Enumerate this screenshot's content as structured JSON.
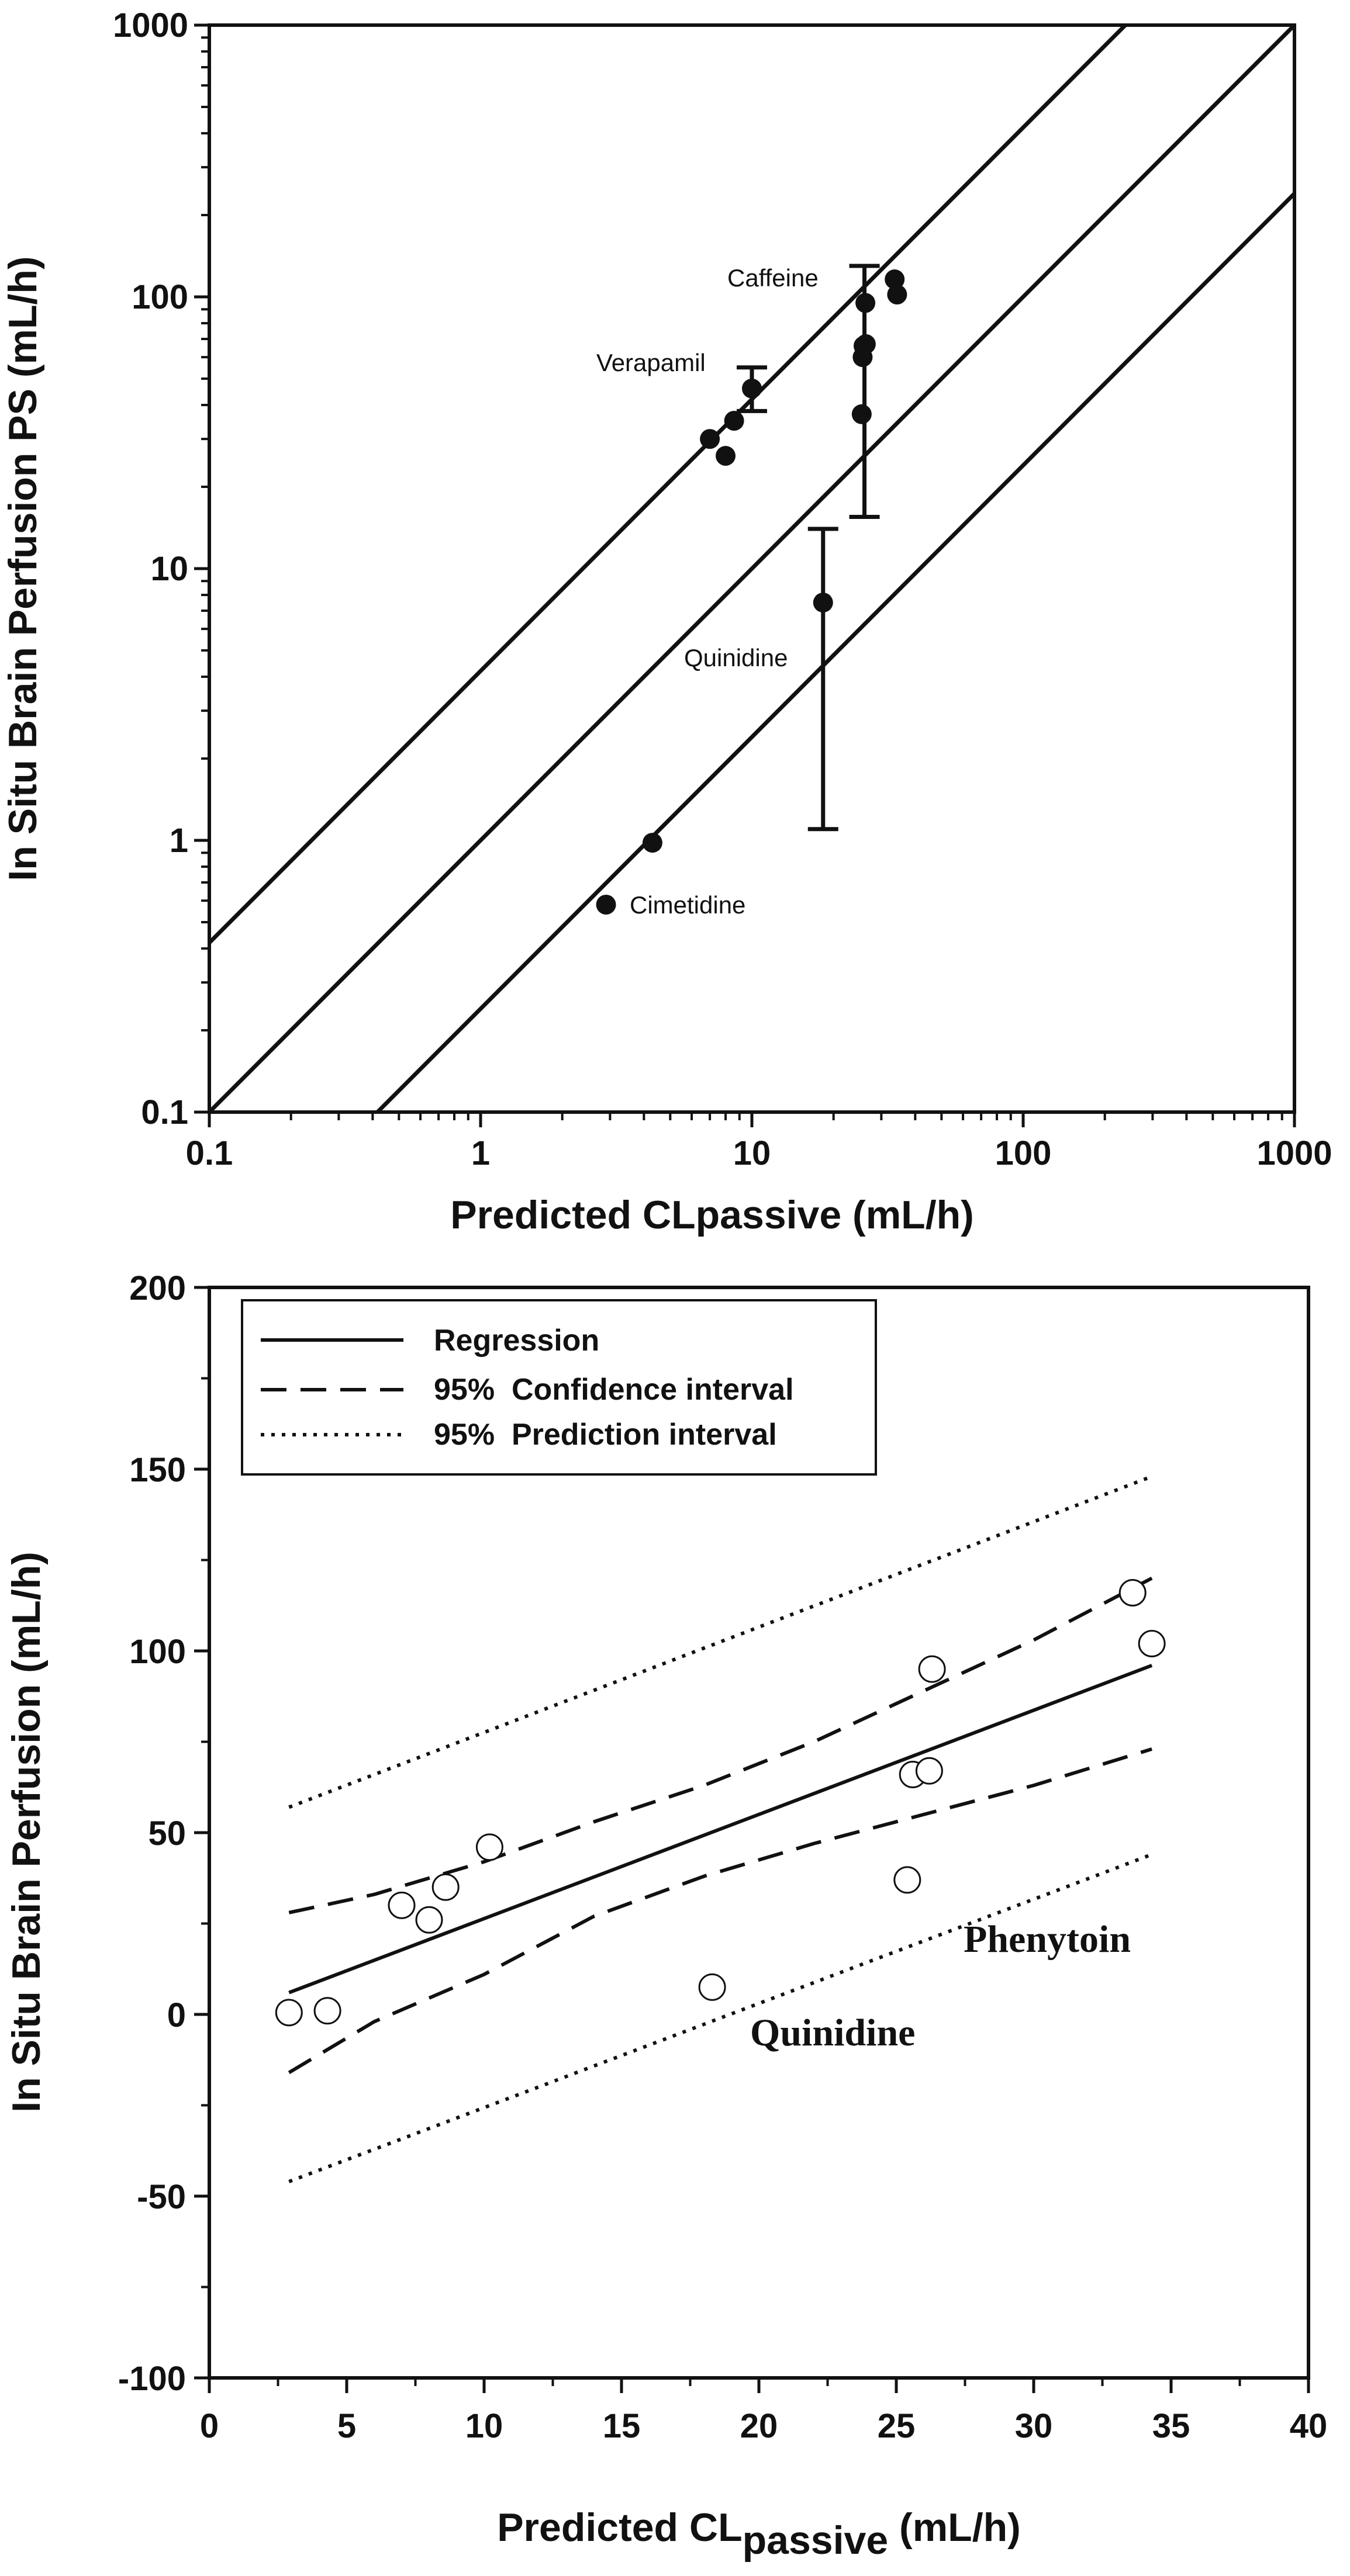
{
  "chart_data": [
    {
      "type": "scatter",
      "scale": "log-log",
      "xlabel": "Predicted CLpassive (mL/h)",
      "ylabel": "In Situ Brain Perfusion PS (mL/h)",
      "xlim": [
        0.1,
        1000
      ],
      "ylim": [
        0.1,
        1000
      ],
      "x_ticks": [
        "0.1",
        "1",
        "10",
        "100",
        "1000"
      ],
      "y_ticks": [
        "0.1",
        "1",
        "10",
        "100",
        "1000"
      ],
      "reference_lines": [
        {
          "name": "4-fold above unity",
          "factor": 4.2
        },
        {
          "name": "unity",
          "factor": 1
        },
        {
          "name": "4-fold below unity",
          "factor": 0.24
        }
      ],
      "points": [
        {
          "x": 2.9,
          "y": 0.58
        },
        {
          "x": 4.3,
          "y": 0.98
        },
        {
          "x": 7.0,
          "y": 30
        },
        {
          "x": 8.0,
          "y": 26
        },
        {
          "x": 8.6,
          "y": 35
        },
        {
          "x": 10.0,
          "y": 46
        },
        {
          "x": 18.3,
          "y": 7.5
        },
        {
          "x": 25.4,
          "y": 37
        },
        {
          "x": 25.6,
          "y": 60
        },
        {
          "x": 25.8,
          "y": 66
        },
        {
          "x": 26.3,
          "y": 67
        },
        {
          "x": 26.2,
          "y": 95
        },
        {
          "x": 33.6,
          "y": 116
        },
        {
          "x": 34.3,
          "y": 102
        }
      ],
      "error_bars": [
        {
          "x": 10.0,
          "low": 38,
          "high": 55
        },
        {
          "x": 18.3,
          "low": 1.1,
          "high": 14
        },
        {
          "x": 26.0,
          "low": 15.5,
          "high": 130
        }
      ],
      "annotations": [
        "Caffeine",
        "Verapamil",
        "Quinidine",
        "Cimetidine"
      ]
    },
    {
      "type": "scatter",
      "xlabel_main": "Predicted CL",
      "xlabel_sub": "passive",
      "xlabel_unit": " (mL/h)",
      "ylabel": "In Situ Brain Perfusion (mL/h)",
      "xlim": [
        0,
        40
      ],
      "ylim": [
        -100,
        200
      ],
      "x_ticks": [
        "0",
        "5",
        "10",
        "15",
        "20",
        "25",
        "30",
        "35",
        "40"
      ],
      "y_ticks": [
        "-100",
        "-50",
        "0",
        "50",
        "100",
        "150",
        "200"
      ],
      "points": [
        {
          "x": 2.9,
          "y": 0.5
        },
        {
          "x": 4.3,
          "y": 1
        },
        {
          "x": 7.0,
          "y": 30
        },
        {
          "x": 8.0,
          "y": 26
        },
        {
          "x": 8.6,
          "y": 35
        },
        {
          "x": 10.2,
          "y": 46
        },
        {
          "x": 18.3,
          "y": 7.5
        },
        {
          "x": 25.4,
          "y": 37
        },
        {
          "x": 25.6,
          "y": 66
        },
        {
          "x": 26.2,
          "y": 67
        },
        {
          "x": 26.3,
          "y": 95
        },
        {
          "x": 33.6,
          "y": 116
        },
        {
          "x": 34.3,
          "y": 102
        }
      ],
      "regression": {
        "x": [
          2.9,
          34.3
        ],
        "y": [
          6,
          96
        ]
      },
      "confidence_upper": {
        "x": [
          2.9,
          6,
          10,
          14,
          18,
          22,
          26,
          30,
          34.3
        ],
        "y": [
          28,
          33,
          42,
          53,
          63,
          75,
          89,
          103,
          120
        ]
      },
      "confidence_lower": {
        "x": [
          2.9,
          6,
          10,
          14,
          18,
          22,
          26,
          30,
          34.3
        ],
        "y": [
          -16,
          -2,
          11,
          27,
          38,
          47,
          55,
          63,
          73
        ]
      },
      "prediction_upper": {
        "x": [
          2.9,
          34.3
        ],
        "y": [
          57,
          148
        ]
      },
      "prediction_lower": {
        "x": [
          2.9,
          34.3
        ],
        "y": [
          -46,
          44
        ]
      },
      "legend": [
        {
          "label": "Regression",
          "style": "solid"
        },
        {
          "label": "95%  Confidence interval",
          "style": "dashed"
        },
        {
          "label": "95%  Prediction interval",
          "style": "dotted"
        }
      ],
      "annotations": [
        "Phenytoin",
        "Quinidine"
      ]
    }
  ]
}
